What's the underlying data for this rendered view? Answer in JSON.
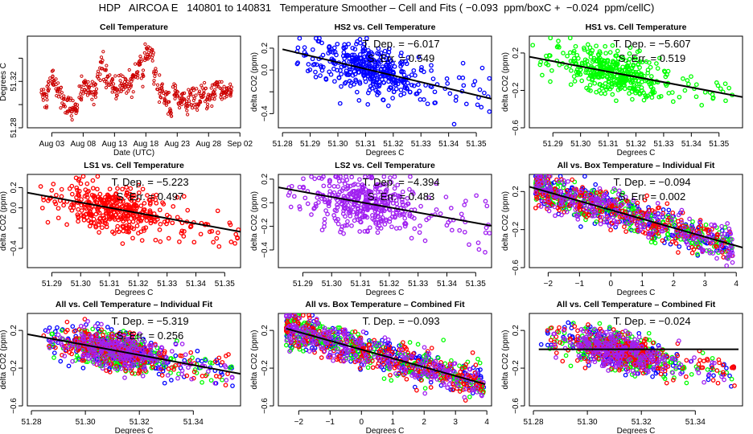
{
  "title": "HDP   AIRCOA E   140801 to 140831   Temperature Smoother – Cell and Fits ( −0.093  ppm/boxC +  −0.024  ppm/cellC)",
  "colors": {
    "HS2": "#0000ff",
    "HS1": "#00ff00",
    "LS1": "#ff0000",
    "LS2": "#a020f0",
    "cell": "#cc0000",
    "fit": "#000000"
  },
  "chart_data": [
    {
      "id": "cell-temp",
      "type": "line",
      "title": "Cell Temperature",
      "xlabel": "Date (UTC)",
      "ylabel": "Degrees C",
      "xticks": [
        "Aug 03",
        "Aug 08",
        "Aug 13",
        "Aug 18",
        "Aug 23",
        "Aug 28",
        "Sep 02"
      ],
      "xtick_days": [
        3,
        8,
        13,
        18,
        23,
        28,
        33
      ],
      "xlim_days": [
        -0.9,
        33.1
      ],
      "yticks": [
        51.28,
        51.3,
        51.32,
        51.34
      ],
      "yticklabels": [
        "51.28",
        "",
        "51.32",
        ""
      ],
      "ylim": [
        51.28,
        51.359
      ],
      "x_days": [
        1.5,
        2,
        2.5,
        3,
        3.5,
        4,
        4.5,
        5,
        5.5,
        6,
        6.5,
        7,
        7.5,
        8,
        8.5,
        9,
        9.5,
        10,
        10.5,
        11,
        11.5,
        12,
        12.5,
        13,
        13.5,
        14,
        14.5,
        15,
        15.5,
        16,
        16.5,
        17,
        17.5,
        18,
        18.5,
        19,
        19.5,
        20,
        20.5,
        21,
        21.5,
        22,
        22.5,
        23,
        23.5,
        24,
        24.5,
        25,
        25.5,
        26,
        26.5,
        27,
        27.5,
        28,
        28.5,
        29,
        29.5,
        30,
        30.5,
        31,
        31.5
      ],
      "values": [
        51.311,
        51.304,
        51.317,
        51.325,
        51.319,
        51.315,
        51.308,
        51.3,
        51.298,
        51.297,
        51.296,
        51.299,
        51.31,
        51.315,
        51.312,
        51.313,
        51.31,
        51.315,
        51.325,
        51.338,
        51.325,
        51.322,
        51.319,
        51.315,
        51.312,
        51.317,
        51.321,
        51.315,
        51.318,
        51.322,
        51.33,
        51.333,
        51.327,
        51.342,
        51.345,
        51.342,
        51.325,
        51.313,
        51.31,
        51.307,
        51.305,
        51.295,
        51.31,
        51.305,
        51.302,
        51.307,
        51.297,
        51.303,
        51.308,
        51.305,
        51.302,
        51.306,
        51.308,
        51.304,
        51.307,
        51.313,
        51.317,
        51.311,
        51.31,
        51.312,
        51.313
      ]
    },
    {
      "id": "hs2-vs-cell",
      "type": "scatter",
      "title": "HS2 vs. Cell Temperature",
      "xlabel": "Degrees C",
      "ylabel": "delta CO2 (ppm)",
      "series": [
        {
          "name": "HS2",
          "center_x": 51.31,
          "spread_x": 0.012,
          "intercept_at_center": 0.0
        }
      ],
      "xticks": [
        51.28,
        51.29,
        51.3,
        51.31,
        51.32,
        51.33,
        51.34,
        51.35
      ],
      "yticks": [
        -0.4,
        -0.2,
        0.0,
        0.2
      ],
      "yticklabels": [
        "−0.4",
        "",
        "0.0",
        "0.2"
      ],
      "xlim": [
        51.2785,
        51.3555
      ],
      "ylim": [
        -0.53,
        0.31
      ],
      "fit": {
        "slope": -6.017,
        "x0": 51.28,
        "y0": 0.19
      },
      "annotations": [
        "T. Dep. =  −6.017",
        "S. Err. =  0.549"
      ]
    },
    {
      "id": "hs1-vs-cell",
      "type": "scatter",
      "title": "HS1 vs. Cell Temperature",
      "xlabel": "Degrees C",
      "ylabel": "delta CO2 (ppm)",
      "series": [
        {
          "name": "HS1"
        }
      ],
      "xticks": [
        51.29,
        51.3,
        51.31,
        51.32,
        51.33,
        51.34,
        51.35
      ],
      "yticks": [
        -0.6,
        -0.2,
        0.2
      ],
      "yticklabels": [
        "−0.6",
        "−0.2",
        "0.2"
      ],
      "xlim": [
        51.2815,
        51.3585
      ],
      "ylim": [
        -0.6,
        0.38
      ],
      "fit": {
        "slope": -5.607,
        "x0": 51.2815,
        "y0": 0.16
      },
      "annotations": [
        "T. Dep. =  −5.607",
        "S. Err. =  0.519"
      ]
    },
    {
      "id": "ls1-vs-cell",
      "type": "scatter",
      "title": "LS1 vs. Cell Temperature",
      "xlabel": "Degrees C",
      "ylabel": "delta CO2 (ppm)",
      "series": [
        {
          "name": "LS1"
        }
      ],
      "xticks": [
        51.29,
        51.3,
        51.31,
        51.32,
        51.33,
        51.34,
        51.35
      ],
      "yticks": [
        -0.4,
        -0.2,
        0.0,
        0.2
      ],
      "yticklabels": [
        "−0.4",
        "",
        "0.0",
        "0.2"
      ],
      "xlim": [
        51.2815,
        51.3555
      ],
      "ylim": [
        -0.59,
        0.33
      ],
      "fit": {
        "slope": -5.223,
        "x0": 51.2815,
        "y0": 0.15
      },
      "annotations": [
        "T. Dep. =  −5.223",
        "S. Err. =  0.497"
      ]
    },
    {
      "id": "ls2-vs-cell",
      "type": "scatter",
      "title": "LS2 vs. Cell Temperature",
      "xlabel": "Degrees C",
      "ylabel": "delta CO2 (ppm)",
      "series": [
        {
          "name": "LS2"
        }
      ],
      "xticks": [
        51.29,
        51.3,
        51.31,
        51.32,
        51.33,
        51.34,
        51.35
      ],
      "yticks": [
        -0.4,
        -0.2,
        0.0,
        0.2
      ],
      "yticklabels": [
        "−0.4",
        "−0.2",
        "0.0",
        "0.2"
      ],
      "xlim": [
        51.2815,
        51.3555
      ],
      "ylim": [
        -0.55,
        0.24
      ],
      "fit": {
        "slope": -4.394,
        "x0": 51.2815,
        "y0": 0.13
      },
      "annotations": [
        "T. Dep. =  −4.394",
        "S. Err. =  0.483"
      ]
    },
    {
      "id": "all-vs-box-individual",
      "type": "scatter",
      "title": "All vs. Box Temperature – Individual Fit",
      "xlabel": "Degrees C",
      "ylabel": "delta CO2 (ppm)",
      "series": [
        {
          "name": "HS2"
        },
        {
          "name": "HS1"
        },
        {
          "name": "LS1"
        },
        {
          "name": "LS2"
        }
      ],
      "xticks": [
        -2,
        -1,
        0,
        1,
        2,
        3,
        4
      ],
      "yticks": [
        -0.6,
        -0.2,
        0.2
      ],
      "yticklabels": [
        "−0.6",
        "−0.2",
        "0.2"
      ],
      "xlim": [
        -2.6,
        4.2
      ],
      "ylim": [
        -0.6,
        0.38
      ],
      "fit": {
        "slope": -0.094,
        "x0": -2.6,
        "y0": 0.25
      },
      "annotations": [
        "T. Dep. =  −0.094",
        "S. Err. =  0.002"
      ]
    },
    {
      "id": "all-vs-cell-individual",
      "type": "scatter",
      "title": "All vs. Cell Temperature – Individual Fit",
      "xlabel": "Degrees C",
      "ylabel": "delta CO2 (ppm)",
      "series": [
        {
          "name": "HS2"
        },
        {
          "name": "HS1"
        },
        {
          "name": "LS1"
        },
        {
          "name": "LS2"
        }
      ],
      "xticks": [
        51.28,
        51.3,
        51.32,
        51.34
      ],
      "yticks": [
        -0.6,
        -0.2,
        0.2
      ],
      "yticklabels": [
        "−0.6",
        "−0.2",
        "0.2"
      ],
      "xlim": [
        51.2785,
        51.3575
      ],
      "ylim": [
        -0.6,
        0.38
      ],
      "fit": {
        "slope": -5.319,
        "x0": 51.2785,
        "y0": 0.16
      },
      "annotations": [
        "T. Dep. =  −5.319",
        "S. Err. =  0.256"
      ]
    },
    {
      "id": "all-vs-box-combined",
      "type": "scatter",
      "title": "All vs. Box Temperature – Combined Fit",
      "xlabel": "Degrees C",
      "ylabel": "delta CO2 (ppm)",
      "series": [
        {
          "name": "HS2"
        },
        {
          "name": "HS1"
        },
        {
          "name": "LS1"
        },
        {
          "name": "LS2"
        }
      ],
      "xticks": [
        -2,
        -1,
        0,
        1,
        2,
        3,
        4
      ],
      "yticks": [
        -0.6,
        -0.2,
        0.2
      ],
      "yticklabels": [
        "−0.6",
        "−0.2",
        "0.2"
      ],
      "xlim": [
        -2.65,
        4.15
      ],
      "ylim": [
        -0.6,
        0.38
      ],
      "fit": {
        "slope": -0.093,
        "x0": -2.4,
        "y0": 0.22,
        "x1": 3.95
      },
      "annotations": [
        "T. Dep. =  −0.093"
      ]
    },
    {
      "id": "all-vs-cell-combined",
      "type": "scatter",
      "title": "All vs. Cell Temperature – Combined Fit",
      "xlabel": "Degrees C",
      "ylabel": "delta CO2 (ppm)",
      "series": [
        {
          "name": "HS2"
        },
        {
          "name": "HS1"
        },
        {
          "name": "LS1"
        },
        {
          "name": "LS2"
        }
      ],
      "xticks": [
        51.28,
        51.3,
        51.32,
        51.34
      ],
      "yticks": [
        -0.6,
        -0.2,
        0.2
      ],
      "yticklabels": [
        "−0.6",
        "−0.2",
        "0.2"
      ],
      "xlim": [
        51.2785,
        51.3575
      ],
      "ylim": [
        -0.6,
        0.38
      ],
      "fit": {
        "slope": -0.024,
        "x0": 51.282,
        "y0": 0.0,
        "x1": 51.356
      },
      "annotations": [
        "T. Dep. =  −0.024"
      ]
    }
  ]
}
